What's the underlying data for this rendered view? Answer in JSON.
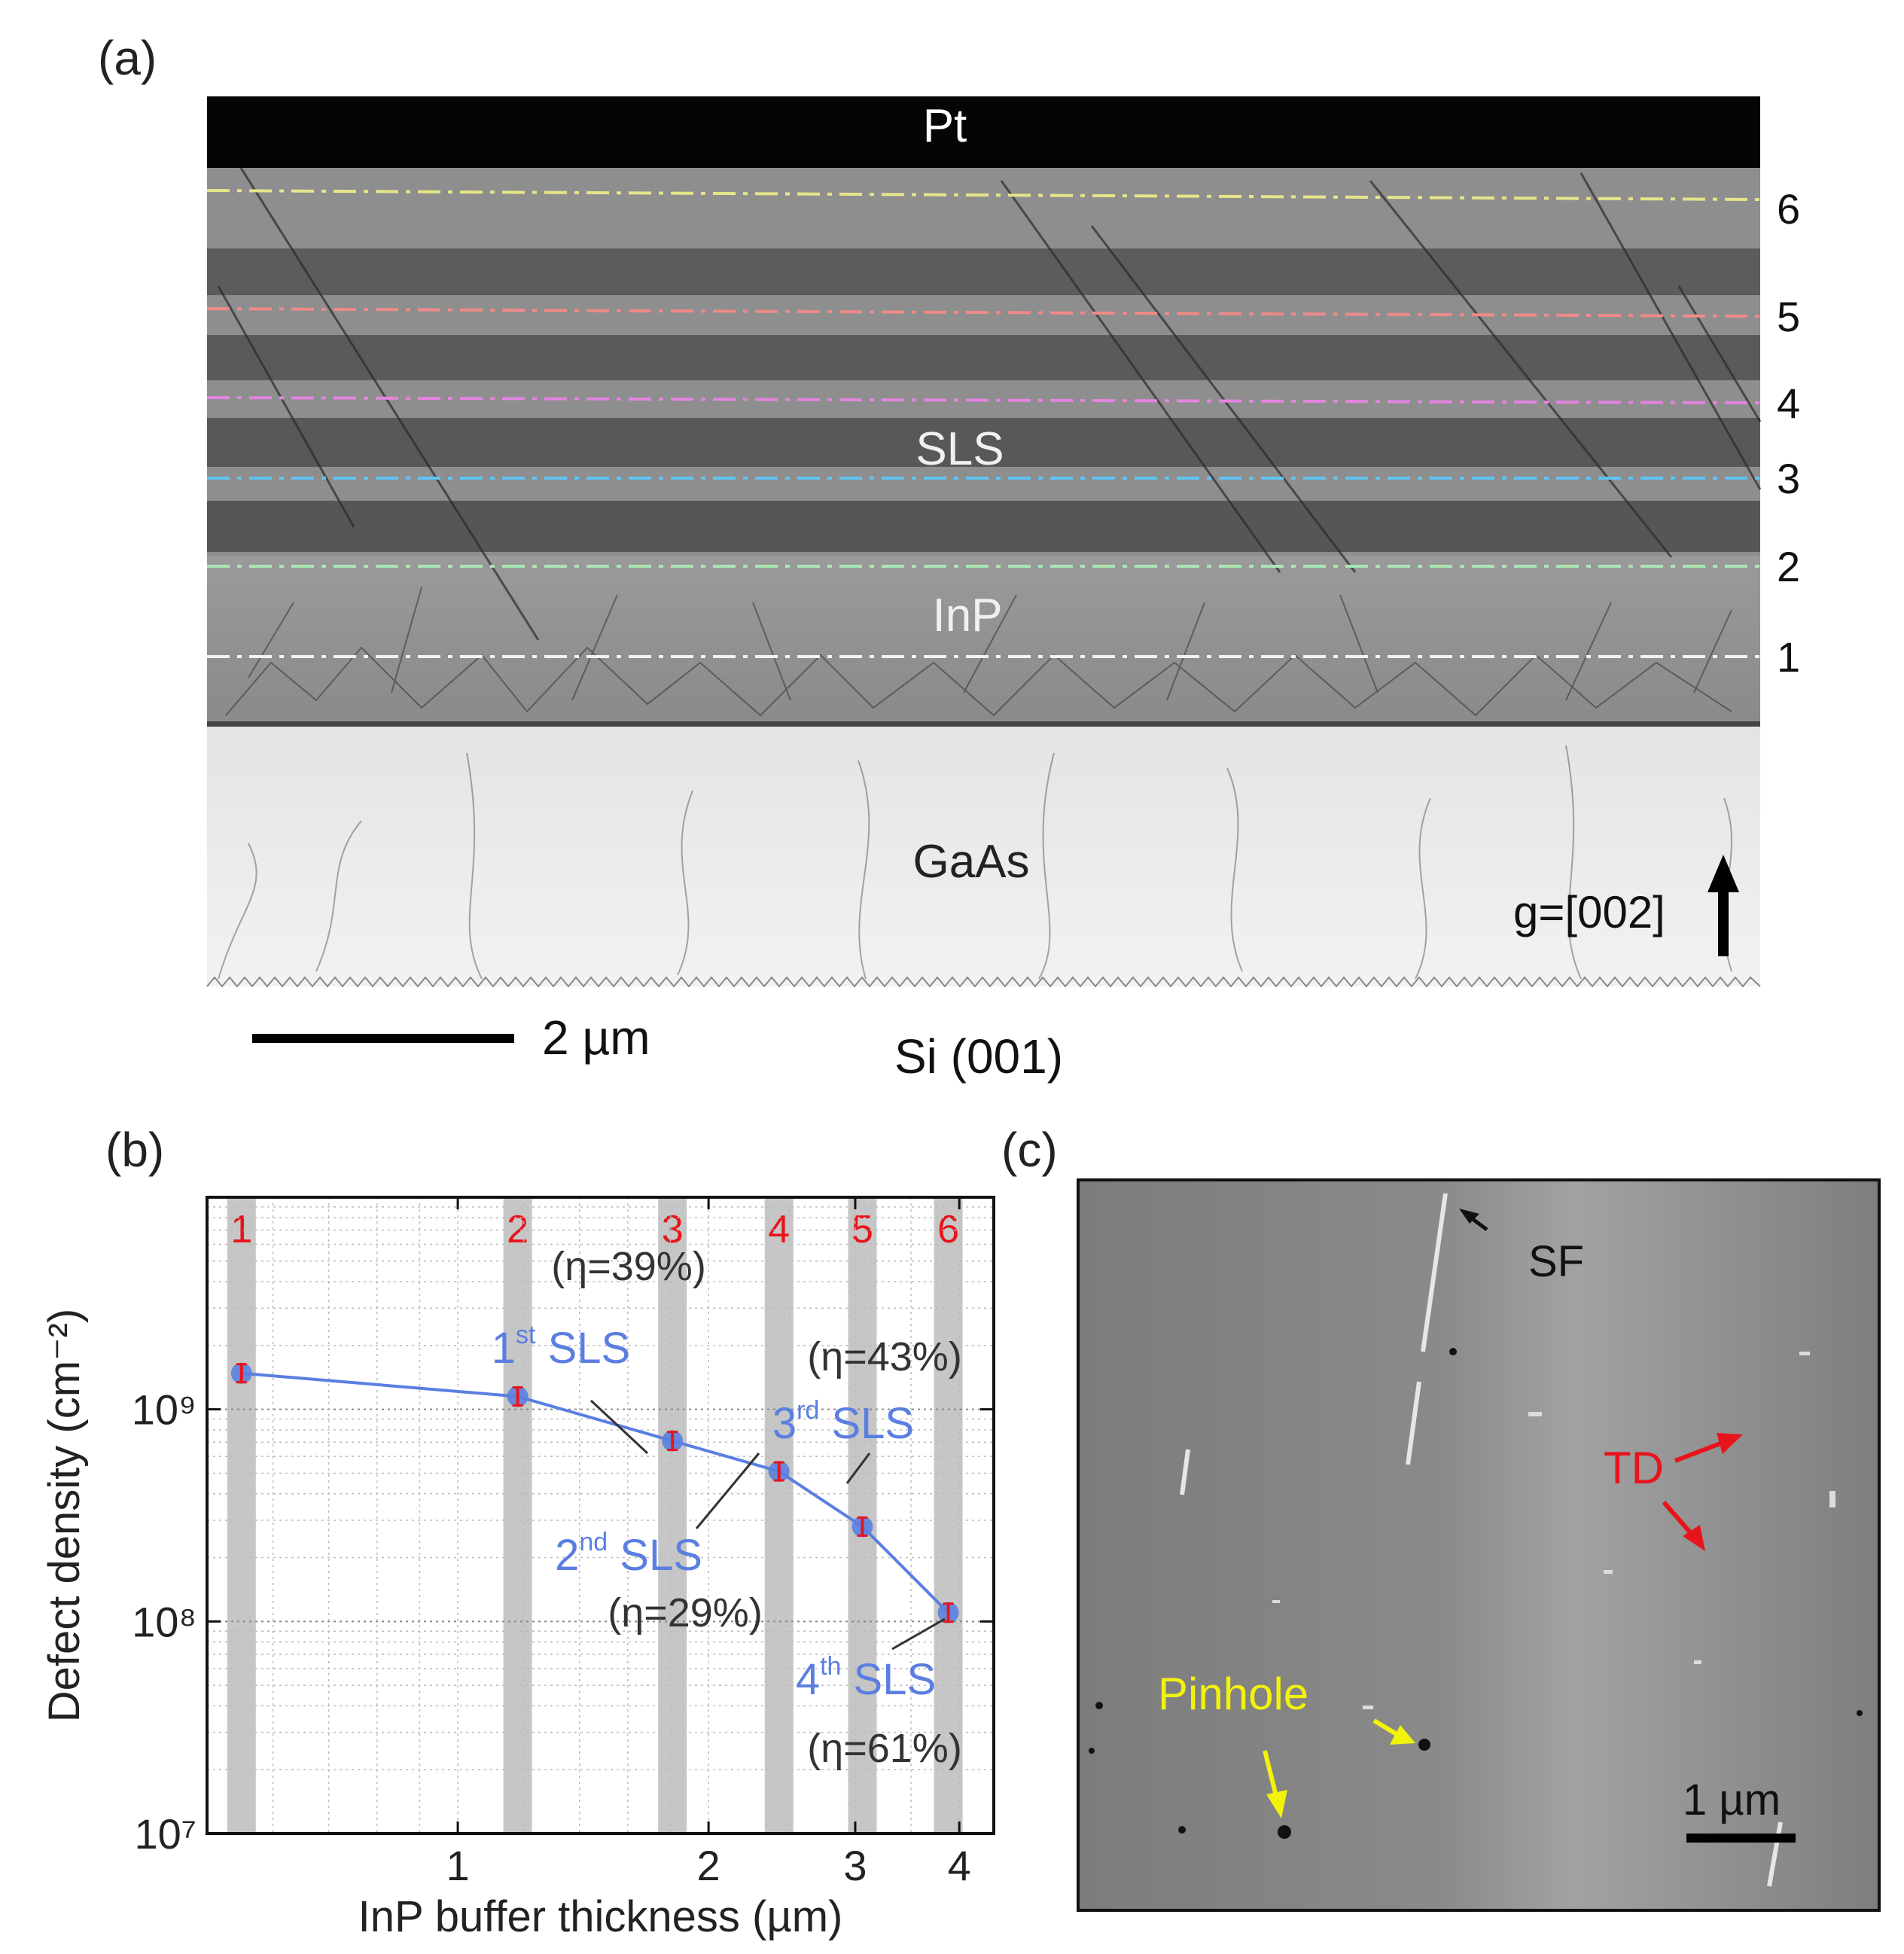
{
  "panels": {
    "a": {
      "label": "(a)",
      "layers": {
        "pt": "Pt",
        "sls": "SLS",
        "inp": "InP",
        "gaas": "GaAs",
        "substrate": "Si (001)"
      },
      "line_labels": [
        "1",
        "2",
        "3",
        "4",
        "5",
        "6"
      ],
      "line_colors": [
        "#f2f2f2",
        "#a9e6b4",
        "#5fc4f2",
        "#e384e0",
        "#ee8a88",
        "#e7e58a"
      ],
      "scale_bar": "2 µm",
      "g_vector": "g=[002]"
    },
    "b": {
      "label": "(b)"
    },
    "c": {
      "label": "(c)",
      "annotations": {
        "sf": "SF",
        "td": "TD",
        "pinhole": "Pinhole"
      },
      "scale_bar": "1 µm",
      "colors": {
        "sf": "#111111",
        "td": "#e8141b",
        "pinhole": "#f2f20a"
      }
    }
  },
  "chart_data": {
    "type": "line",
    "xlabel": "InP buffer thickness (µm)",
    "ylabel": "Defect density (cm⁻²)",
    "x_scale": "log",
    "y_scale": "log",
    "xlim": [
      0.5,
      4.4
    ],
    "ylim": [
      10000000.0,
      10000000000.0
    ],
    "x_ticks": [
      1,
      2,
      3,
      4
    ],
    "y_ticks": [
      {
        "value": 10000000.0,
        "label": "10⁷"
      },
      {
        "value": 100000000.0,
        "label": "10⁸"
      },
      {
        "value": 1000000000.0,
        "label": "10⁹"
      }
    ],
    "grid": true,
    "series": [
      {
        "x": [
          0.55,
          1.18,
          1.81,
          2.43,
          3.06,
          3.88
        ],
        "y": [
          1480000000.0,
          1150000000.0,
          710000000.0,
          510000000.0,
          280000000.0,
          110000000.0
        ],
        "color": "#5a7fe0",
        "marker_color": "#e8141b"
      }
    ],
    "bands": {
      "labels": [
        "1",
        "2",
        "3",
        "4",
        "5",
        "6"
      ],
      "x": [
        0.55,
        1.18,
        1.81,
        2.43,
        3.06,
        3.88
      ],
      "color": "#c6c6c6",
      "label_color": "#e8141b"
    },
    "annotations": [
      {
        "ord": "1",
        "sup": "st",
        "text": "SLS",
        "eta": "(η=39%)"
      },
      {
        "ord": "2",
        "sup": "nd",
        "text": "SLS",
        "eta": "(η=29%)"
      },
      {
        "ord": "3",
        "sup": "rd",
        "text": "SLS",
        "eta": "(η=43%)"
      },
      {
        "ord": "4",
        "sup": "th",
        "text": "SLS",
        "eta": "(η=61%)"
      }
    ]
  }
}
